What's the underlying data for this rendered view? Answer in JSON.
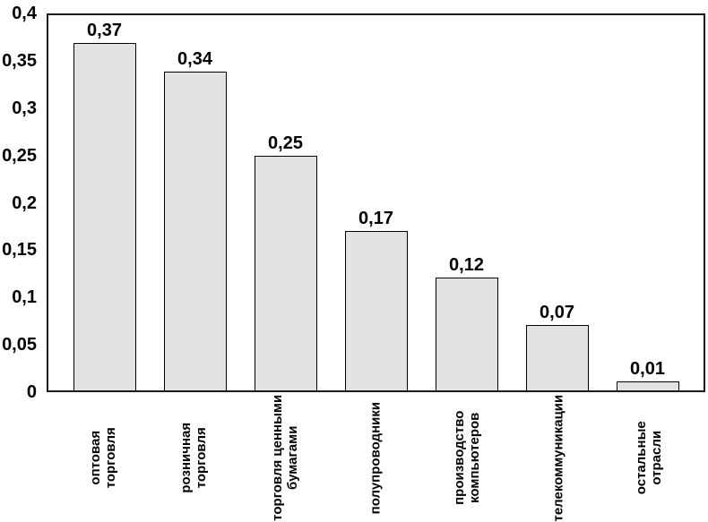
{
  "chart_data": {
    "type": "bar",
    "title": "",
    "xlabel": "",
    "ylabel": "",
    "categories": [
      "оптовая\nторговля",
      "розничная\nторговля",
      "торговля ценными\nбумагами",
      "полупроводники",
      "производство\nкомпьютеров",
      "телекоммуникации",
      "остальные\nотрасли"
    ],
    "values": [
      0.37,
      0.34,
      0.25,
      0.17,
      0.12,
      0.07,
      0.01
    ],
    "value_labels": [
      "0,37",
      "0,34",
      "0,25",
      "0,17",
      "0,12",
      "0,07",
      "0,01"
    ],
    "ylim": [
      0,
      0.4
    ],
    "yticks": [
      0,
      0.05,
      0.1,
      0.15,
      0.2,
      0.25,
      0.3,
      0.35,
      0.4
    ],
    "ytick_labels": [
      "0",
      "0,05",
      "0,1",
      "0,15",
      "0,2",
      "0,25",
      "0,3",
      "0,35",
      "0,4"
    ],
    "decimal_separator": ",",
    "grid": false,
    "legend": false,
    "colors": {
      "bar_fill": "#e2e2e2",
      "bar_border": "#000000",
      "axis_border": "#1a1a1a",
      "text": "#000000",
      "background": "#ffffff"
    }
  }
}
